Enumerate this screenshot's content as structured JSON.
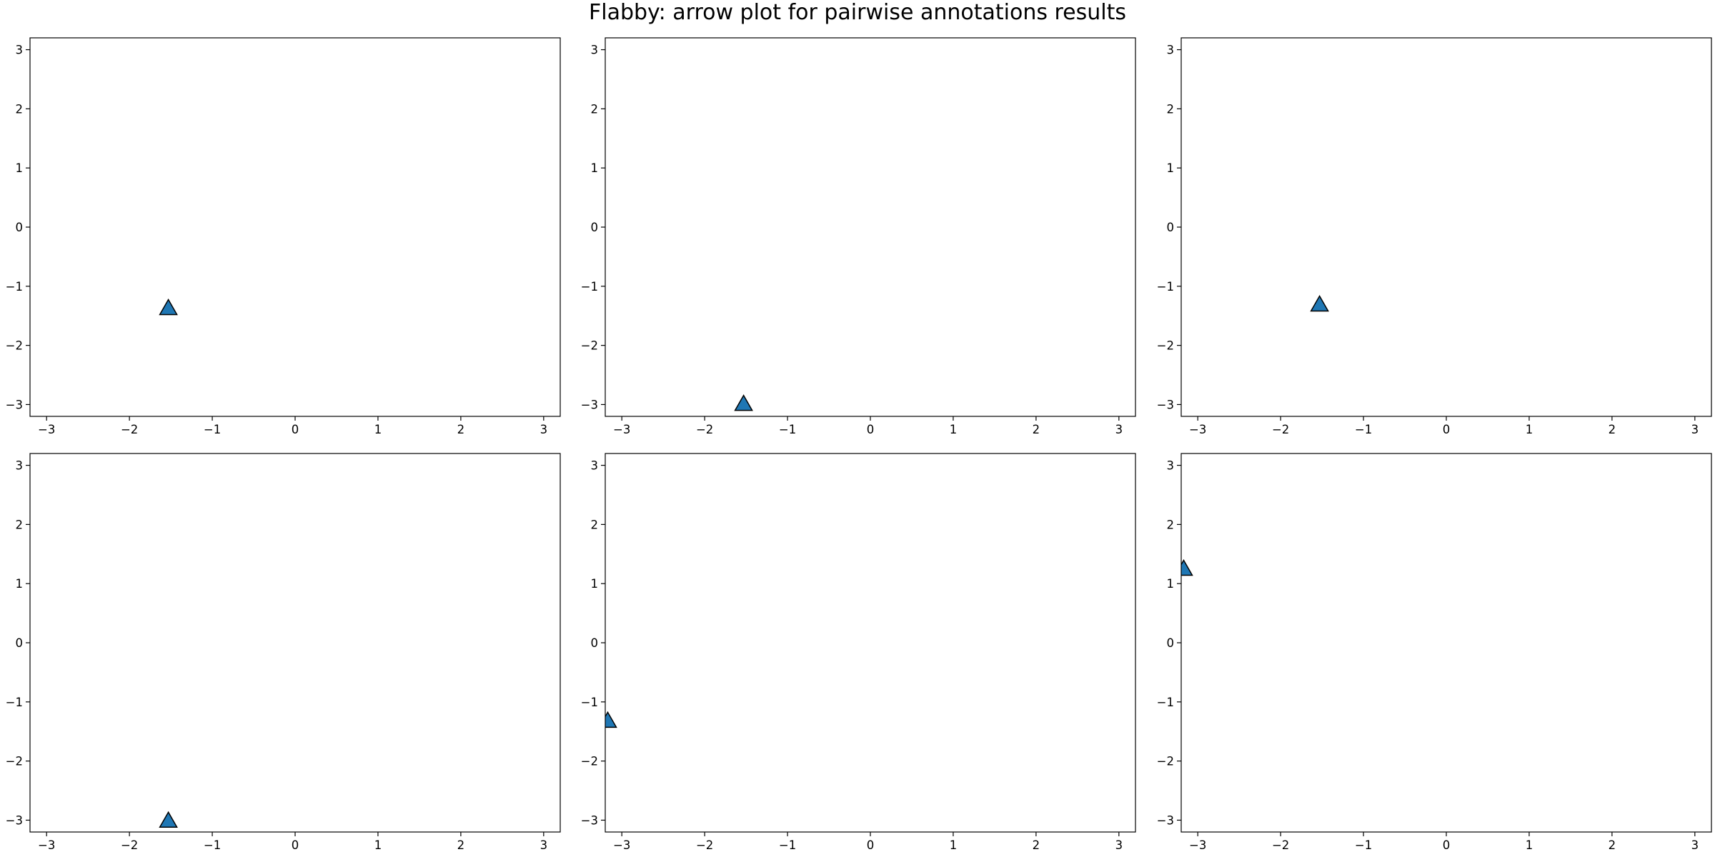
{
  "title": "Flabby: arrow plot for pairwise annotations results",
  "colors": {
    "marker": "#1f77b4",
    "edge": "#000000",
    "axes": "#000000"
  },
  "chart_data": [
    {
      "type": "scatter",
      "marker": "triangle",
      "xlim": [
        -3.2,
        3.2
      ],
      "ylim": [
        -3.2,
        3.2
      ],
      "xticks": [
        -3,
        -2,
        -1,
        0,
        1,
        2,
        3
      ],
      "yticks": [
        -3,
        -2,
        -1,
        0,
        1,
        2,
        3
      ],
      "points": [
        {
          "x": -1.53,
          "y": -1.37
        }
      ]
    },
    {
      "type": "scatter",
      "marker": "triangle",
      "xlim": [
        -3.2,
        3.2
      ],
      "ylim": [
        -3.2,
        3.2
      ],
      "xticks": [
        -3,
        -2,
        -1,
        0,
        1,
        2,
        3
      ],
      "yticks": [
        -3,
        -2,
        -1,
        0,
        1,
        2,
        3
      ],
      "points": [
        {
          "x": -1.53,
          "y": -2.99
        }
      ]
    },
    {
      "type": "scatter",
      "marker": "triangle",
      "xlim": [
        -3.2,
        3.2
      ],
      "ylim": [
        -3.2,
        3.2
      ],
      "xticks": [
        -3,
        -2,
        -1,
        0,
        1,
        2,
        3
      ],
      "yticks": [
        -3,
        -2,
        -1,
        0,
        1,
        2,
        3
      ],
      "points": [
        {
          "x": -1.53,
          "y": -1.31
        }
      ]
    },
    {
      "type": "scatter",
      "marker": "triangle",
      "xlim": [
        -3.2,
        3.2
      ],
      "ylim": [
        -3.2,
        3.2
      ],
      "xticks": [
        -3,
        -2,
        -1,
        0,
        1,
        2,
        3
      ],
      "yticks": [
        -3,
        -2,
        -1,
        0,
        1,
        2,
        3
      ],
      "points": [
        {
          "x": -1.53,
          "y": -3.01
        }
      ]
    },
    {
      "type": "scatter",
      "marker": "triangle",
      "xlim": [
        -3.2,
        3.2
      ],
      "ylim": [
        -3.2,
        3.2
      ],
      "xticks": [
        -3,
        -2,
        -1,
        0,
        1,
        2,
        3
      ],
      "yticks": [
        -3,
        -2,
        -1,
        0,
        1,
        2,
        3
      ],
      "points": [
        {
          "x": -3.17,
          "y": -1.32
        }
      ]
    },
    {
      "type": "scatter",
      "marker": "triangle",
      "xlim": [
        -3.2,
        3.2
      ],
      "ylim": [
        -3.2,
        3.2
      ],
      "xticks": [
        -3,
        -2,
        -1,
        0,
        1,
        2,
        3
      ],
      "yticks": [
        -3,
        -2,
        -1,
        0,
        1,
        2,
        3
      ],
      "points": [
        {
          "x": -3.17,
          "y": 1.25
        }
      ]
    }
  ]
}
